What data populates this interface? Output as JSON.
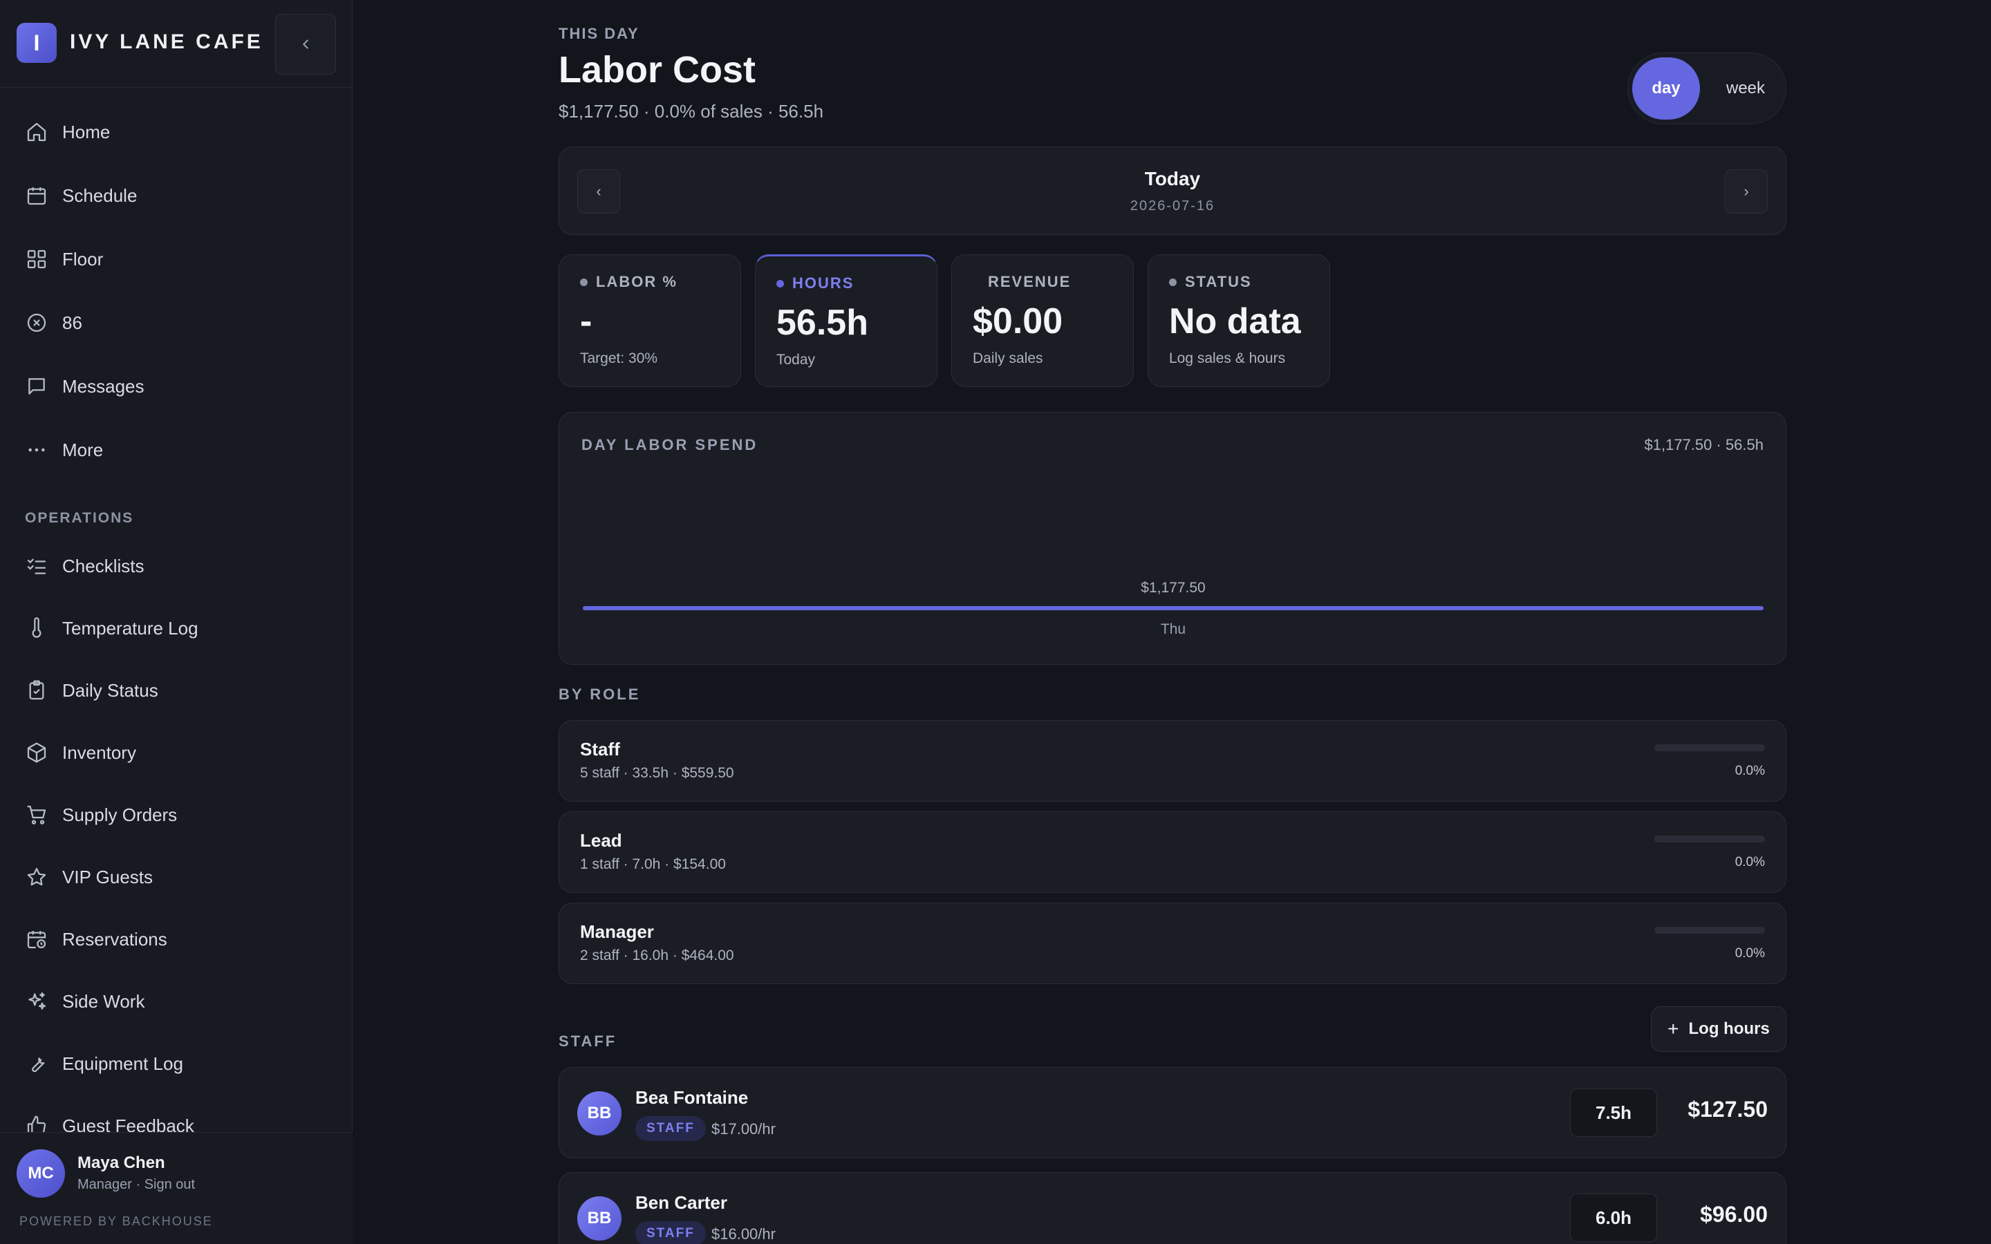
{
  "brand": {
    "initial": "I",
    "name": "IVY LANE CAFE"
  },
  "nav": {
    "main": [
      {
        "label": "Home",
        "icon": "home-icon"
      },
      {
        "label": "Schedule",
        "icon": "calendar-icon"
      },
      {
        "label": "Floor",
        "icon": "grid-icon"
      },
      {
        "label": "86",
        "icon": "circle-x-icon"
      },
      {
        "label": "Messages",
        "icon": "message-icon"
      },
      {
        "label": "More",
        "icon": "more-icon"
      }
    ],
    "section_label": "OPERATIONS",
    "operations": [
      {
        "label": "Checklists",
        "icon": "checklist-icon"
      },
      {
        "label": "Temperature Log",
        "icon": "thermometer-icon"
      },
      {
        "label": "Daily Status",
        "icon": "clipboard-check-icon"
      },
      {
        "label": "Inventory",
        "icon": "box-icon"
      },
      {
        "label": "Supply Orders",
        "icon": "cart-icon"
      },
      {
        "label": "VIP Guests",
        "icon": "star-icon"
      },
      {
        "label": "Reservations",
        "icon": "calendar-clock-icon"
      },
      {
        "label": "Side Work",
        "icon": "sparkles-icon"
      },
      {
        "label": "Equipment Log",
        "icon": "wrench-icon"
      },
      {
        "label": "Guest Feedback",
        "icon": "thumbs-up-icon"
      }
    ]
  },
  "user": {
    "initials": "MC",
    "name": "Maya Chen",
    "role": "Manager · Sign out",
    "powered_by": "POWERED BY BACKHOUSE"
  },
  "header": {
    "eyebrow": "THIS DAY",
    "title": "Labor Cost",
    "subtitle": "$1,177.50 · 0.0% of sales · 56.5h",
    "toggle": {
      "day": "day",
      "week": "week",
      "selected": "day"
    }
  },
  "date_nav": {
    "prev": "‹",
    "next": "›",
    "title": "Today",
    "date": "2026-07-16"
  },
  "stats": [
    {
      "label": "LABOR %",
      "value": "-",
      "hint": "Target: 30%",
      "dot": true,
      "active": false
    },
    {
      "label": "HOURS",
      "value": "56.5h",
      "hint": "Today",
      "dot": true,
      "active": true
    },
    {
      "label": "REVENUE",
      "value": "$0.00",
      "hint": "Daily sales",
      "dot": false,
      "active": false
    },
    {
      "label": "STATUS",
      "value": "No data",
      "hint": "Log sales & hours",
      "dot": true,
      "active": false
    }
  ],
  "spend": {
    "title": "DAY LABOR SPEND",
    "meta": "$1,177.50 · 56.5h"
  },
  "chart_data": {
    "type": "bar",
    "categories": [
      "Thu"
    ],
    "values": [
      1177.5
    ],
    "data_labels": [
      "$1,177.50"
    ],
    "title": "DAY LABOR SPEND",
    "xlabel": "",
    "ylabel": ""
  },
  "by_role": {
    "label": "BY ROLE",
    "rows": [
      {
        "name": "Staff",
        "meta": "5 staff · 33.5h · $559.50",
        "pct": "0.0%",
        "pct_value": 0
      },
      {
        "name": "Lead",
        "meta": "1 staff · 7.0h · $154.00",
        "pct": "0.0%",
        "pct_value": 0
      },
      {
        "name": "Manager",
        "meta": "2 staff · 16.0h · $464.00",
        "pct": "0.0%",
        "pct_value": 0
      }
    ]
  },
  "staff": {
    "label": "STAFF",
    "log_button": "Log hours",
    "rows": [
      {
        "initials": "BB",
        "name": "Bea Fontaine",
        "badge": "STAFF",
        "rate": "$17.00/hr",
        "hours": "7.5h",
        "cost": "$127.50"
      },
      {
        "initials": "BB",
        "name": "Ben Carter",
        "badge": "STAFF",
        "rate": "$16.00/hr",
        "hours": "6.0h",
        "cost": "$96.00"
      }
    ]
  },
  "colors": {
    "accent": "#6467e0",
    "background": "#13151c",
    "card": "#1b1d25"
  }
}
